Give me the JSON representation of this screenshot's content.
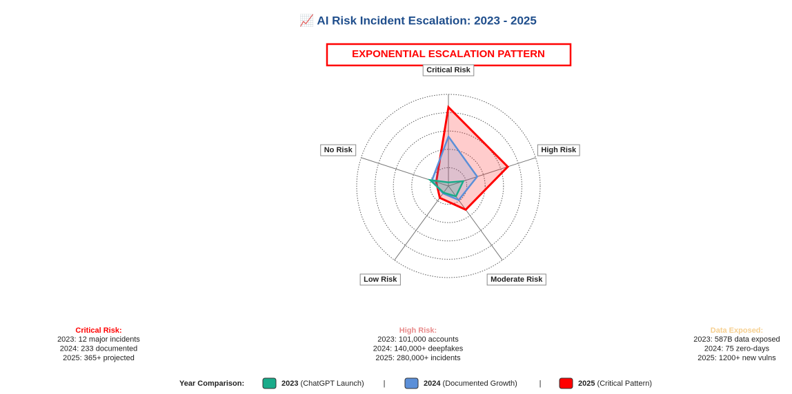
{
  "chart_data": {
    "type": "radar",
    "title": "📈 AI Risk Incident Escalation: 2023 - 2025",
    "banner": "EXPONENTIAL ESCALATION PATTERN",
    "categories": [
      "Critical Risk",
      "High Risk",
      "Moderate Risk",
      "Low Risk",
      "No Risk"
    ],
    "rlim": [
      0,
      5
    ],
    "rticks": [
      1,
      2,
      3,
      4,
      5
    ],
    "grid": true,
    "series": [
      {
        "name": "2025",
        "description": "(Critical Pattern)",
        "color": "#ff0000",
        "values": [
          4.3,
          3.4,
          1.6,
          0.8,
          0.7
        ]
      },
      {
        "name": "2024",
        "description": "(Documented Growth)",
        "color": "#5b8fd8",
        "values": [
          2.7,
          1.65,
          0.95,
          0.5,
          0.95
        ]
      },
      {
        "name": "2023",
        "description": "(ChatGPT Launch)",
        "color": "#1aab8a",
        "values": [
          0.2,
          0.85,
          0.7,
          0.45,
          1.05
        ]
      }
    ],
    "legend_title": "Year Comparison:",
    "legend_separator": "|",
    "annotations": [
      {
        "title": "Critical Risk:",
        "color": "#ff0000",
        "lines": [
          "2023: 12 major incidents",
          "2024: 233 documented",
          "2025: 365+ projected"
        ]
      },
      {
        "title": "High Risk:",
        "color": "#e88a8a",
        "lines": [
          "2023: 101,000 accounts",
          "2024: 140,000+ deepfakes",
          "2025: 280,000+ incidents"
        ]
      },
      {
        "title": "Data Exposed:",
        "color": "#f6cf8f",
        "lines": [
          "2023: 587B data exposed",
          "2024: 75 zero-days",
          "2025: 1200+ new vulns"
        ]
      }
    ]
  }
}
